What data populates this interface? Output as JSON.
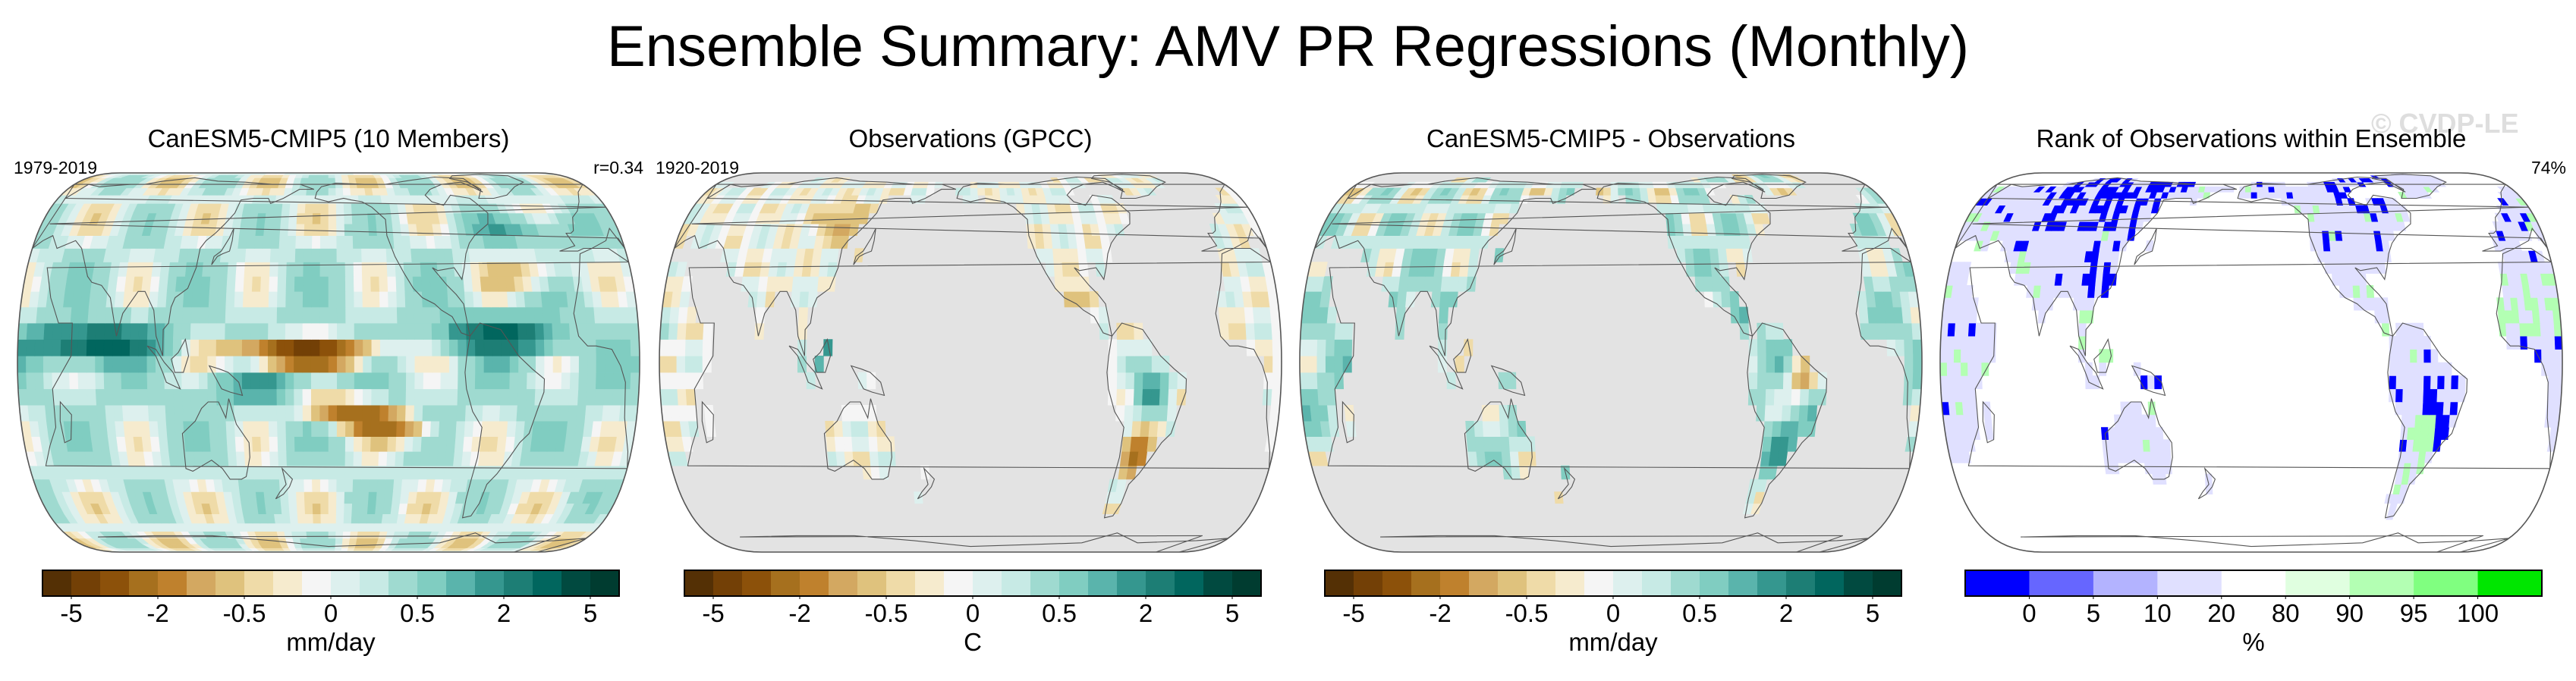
{
  "title": "Ensemble Summary: AMV PR Regressions (Monthly)",
  "watermark": "© CVDP-LE",
  "colors": {
    "ocean_gray": "#e3e3e3",
    "brbg": [
      "#543005",
      "#734006",
      "#8c510a",
      "#a6701e",
      "#bf812d",
      "#d3a861",
      "#dfc27d",
      "#efdba8",
      "#f6ebce",
      "#f5f5f5",
      "#ddf0ee",
      "#c7eae5",
      "#9fdad0",
      "#80cdc1",
      "#5ab4ac",
      "#35978f",
      "#1d7e75",
      "#01665e",
      "#014a40",
      "#003c30"
    ],
    "rank": [
      "#0000ff",
      "#6666ff",
      "#b3b3ff",
      "#e0e0ff",
      "#ffffff",
      "#e0ffe0",
      "#b3ffb3",
      "#80ff80",
      "#00e600"
    ]
  },
  "panels": [
    {
      "title": "CanESM5-CMIP5 (10 Members)",
      "period": "1979-2019",
      "stat": "r=0.34",
      "field": "model"
    },
    {
      "title": "Observations (GPCC)",
      "period": "1920-2019",
      "stat": "",
      "field": "obs"
    },
    {
      "title": "CanESM5-CMIP5 - Observations",
      "period": "",
      "stat": "",
      "field": "diff"
    },
    {
      "title": "Rank of Observations within Ensemble",
      "period": "",
      "stat": "74%",
      "field": "rank"
    }
  ],
  "colorbars": [
    {
      "units": "mm/day",
      "ticks": [
        "-5",
        "-2",
        "-0.5",
        "0",
        "0.5",
        "2",
        "5"
      ],
      "tick_bounds": [
        1,
        4,
        7,
        10,
        13,
        16,
        19
      ],
      "nbins": 20,
      "palette": "brbg"
    },
    {
      "units": "C",
      "ticks": [
        "-5",
        "-2",
        "-0.5",
        "0",
        "0.5",
        "2",
        "5"
      ],
      "tick_bounds": [
        1,
        4,
        7,
        10,
        13,
        16,
        19
      ],
      "nbins": 20,
      "palette": "brbg"
    },
    {
      "units": "mm/day",
      "ticks": [
        "-5",
        "-2",
        "-0.5",
        "0",
        "0.5",
        "2",
        "5"
      ],
      "tick_bounds": [
        1,
        4,
        7,
        10,
        13,
        16,
        19
      ],
      "nbins": 20,
      "palette": "brbg"
    },
    {
      "units": "%",
      "ticks": [
        "0",
        "5",
        "10",
        "20",
        "80",
        "90",
        "95",
        "100"
      ],
      "tick_bounds": [
        1,
        2,
        3,
        4,
        5,
        6,
        7,
        8
      ],
      "nbins": 9,
      "palette": "rank"
    }
  ],
  "chart_data": [
    {
      "type": "heatmap",
      "title": "CanESM5-CMIP5 (10 Members)",
      "period": "1979-2019",
      "pattern_correlation": 0.34,
      "units": "mm/day",
      "levels": [
        -5,
        -2,
        -0.5,
        0,
        0.5,
        2,
        5
      ]
    },
    {
      "type": "heatmap",
      "title": "Observations (GPCC)",
      "period": "1920-2019",
      "units": "C",
      "levels": [
        -5,
        -2,
        -0.5,
        0,
        0.5,
        2,
        5
      ]
    },
    {
      "type": "heatmap",
      "title": "CanESM5-CMIP5 - Observations",
      "units": "mm/day",
      "levels": [
        -5,
        -2,
        -0.5,
        0,
        0.5,
        2,
        5
      ]
    },
    {
      "type": "heatmap",
      "title": "Rank of Observations within Ensemble",
      "percent": 74,
      "units": "%",
      "levels": [
        0,
        5,
        10,
        20,
        80,
        90,
        95,
        100
      ]
    }
  ]
}
